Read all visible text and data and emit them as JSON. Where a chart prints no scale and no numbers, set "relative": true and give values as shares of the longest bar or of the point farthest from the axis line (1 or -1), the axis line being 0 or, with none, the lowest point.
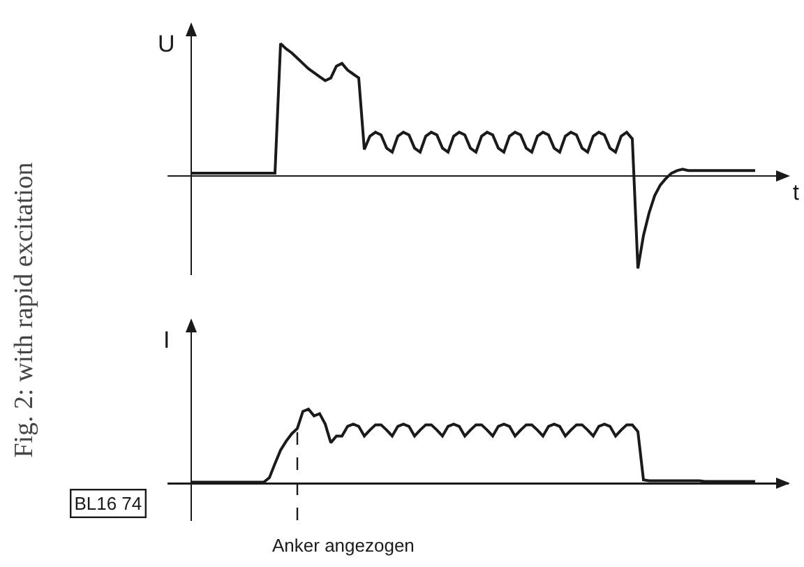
{
  "chart_data": [
    {
      "type": "line",
      "title": "Fig. 2: with rapid excitation",
      "ylabel": "U",
      "xlabel": "t",
      "relative": true,
      "color": "#1a1a1a",
      "categories": [
        null,
        null,
        null,
        null,
        null,
        null,
        null,
        null,
        null,
        null,
        null,
        null,
        null,
        null,
        null,
        null,
        null,
        null,
        null,
        null,
        null,
        null,
        null,
        null,
        null,
        null,
        null,
        null,
        null,
        null,
        null,
        null,
        null,
        null,
        null,
        null,
        null,
        null,
        null,
        null,
        null,
        null,
        null,
        null,
        null,
        null,
        null,
        null,
        null,
        null,
        null,
        null,
        null,
        null,
        null,
        null,
        null,
        null,
        null,
        null,
        null,
        null,
        null,
        null,
        null,
        null,
        null,
        null,
        null,
        null,
        null,
        null,
        null,
        null,
        null,
        null,
        null,
        null,
        null,
        null,
        null,
        null,
        null,
        null,
        null,
        null,
        null,
        null,
        null,
        null,
        null,
        null,
        null,
        null,
        null,
        null,
        null,
        null,
        null,
        null,
        null,
        null
      ],
      "values": [
        0.02,
        0.02,
        0.02,
        0.02,
        0.02,
        0.02,
        0.02,
        0.02,
        0.02,
        0.02,
        0.02,
        0.02,
        0.02,
        0.02,
        0.02,
        0.02,
        1.0,
        0.96,
        0.93,
        0.89,
        0.85,
        0.81,
        0.78,
        0.75,
        0.72,
        0.74,
        0.83,
        0.85,
        0.8,
        0.77,
        0.74,
        0.2,
        0.3,
        0.33,
        0.31,
        0.21,
        0.18,
        0.3,
        0.33,
        0.31,
        0.21,
        0.18,
        0.3,
        0.33,
        0.31,
        0.21,
        0.18,
        0.3,
        0.33,
        0.31,
        0.21,
        0.18,
        0.3,
        0.33,
        0.31,
        0.21,
        0.18,
        0.3,
        0.33,
        0.31,
        0.21,
        0.18,
        0.3,
        0.33,
        0.31,
        0.21,
        0.18,
        0.3,
        0.33,
        0.31,
        0.21,
        0.18,
        0.3,
        0.33,
        0.31,
        0.21,
        0.18,
        0.3,
        0.33,
        0.28,
        -0.7,
        -0.45,
        -0.28,
        -0.15,
        -0.07,
        -0.02,
        0.02,
        0.04,
        0.05,
        0.04,
        0.04,
        0.04,
        0.04,
        0.04,
        0.04,
        0.04,
        0.04,
        0.04,
        0.04,
        0.04,
        0.04,
        0.04
      ]
    },
    {
      "type": "line",
      "ylabel": "I",
      "relative": true,
      "color": "#1a1a1a",
      "categories": [
        null,
        null,
        null,
        null,
        null,
        null,
        null,
        null,
        null,
        null,
        null,
        null,
        null,
        null,
        null,
        null,
        null,
        null,
        null,
        null,
        null,
        null,
        null,
        null,
        null,
        null,
        null,
        null,
        null,
        null,
        null,
        null,
        null,
        null,
        null,
        null,
        null,
        null,
        null,
        null,
        null,
        null,
        null,
        null,
        null,
        null,
        null,
        null,
        null,
        null,
        null,
        null,
        null,
        null,
        null,
        null,
        null,
        null,
        null,
        null,
        null,
        null,
        null,
        null,
        null,
        null,
        null,
        null,
        null,
        null,
        null,
        null,
        null,
        null,
        null,
        null,
        null,
        null,
        null,
        null,
        null,
        null,
        null,
        null,
        null,
        null,
        null,
        null,
        null,
        null,
        null,
        null,
        null,
        null,
        null,
        null,
        null,
        null,
        null,
        null,
        null,
        null
      ],
      "values": [
        0.02,
        0.02,
        0.02,
        0.02,
        0.02,
        0.02,
        0.02,
        0.02,
        0.02,
        0.02,
        0.02,
        0.02,
        0.02,
        0.02,
        0.08,
        0.27,
        0.45,
        0.57,
        0.67,
        0.74,
        0.97,
        1.0,
        0.91,
        0.94,
        0.8,
        0.55,
        0.64,
        0.64,
        0.77,
        0.8,
        0.77,
        0.64,
        0.72,
        0.79,
        0.79,
        0.72,
        0.64,
        0.77,
        0.8,
        0.77,
        0.64,
        0.72,
        0.79,
        0.79,
        0.72,
        0.64,
        0.77,
        0.8,
        0.77,
        0.64,
        0.72,
        0.79,
        0.79,
        0.72,
        0.64,
        0.77,
        0.8,
        0.77,
        0.64,
        0.72,
        0.79,
        0.79,
        0.72,
        0.64,
        0.77,
        0.8,
        0.77,
        0.64,
        0.72,
        0.79,
        0.79,
        0.72,
        0.64,
        0.77,
        0.8,
        0.77,
        0.64,
        0.72,
        0.79,
        0.79,
        0.7,
        0.05,
        0.04,
        0.04,
        0.04,
        0.04,
        0.04,
        0.04,
        0.04,
        0.04,
        0.04,
        0.04,
        0.03,
        0.03,
        0.03,
        0.03,
        0.03,
        0.03,
        0.03,
        0.03,
        0.03,
        0.03
      ],
      "annotations": [
        "Anker angezogen",
        "BL16 74"
      ]
    }
  ]
}
